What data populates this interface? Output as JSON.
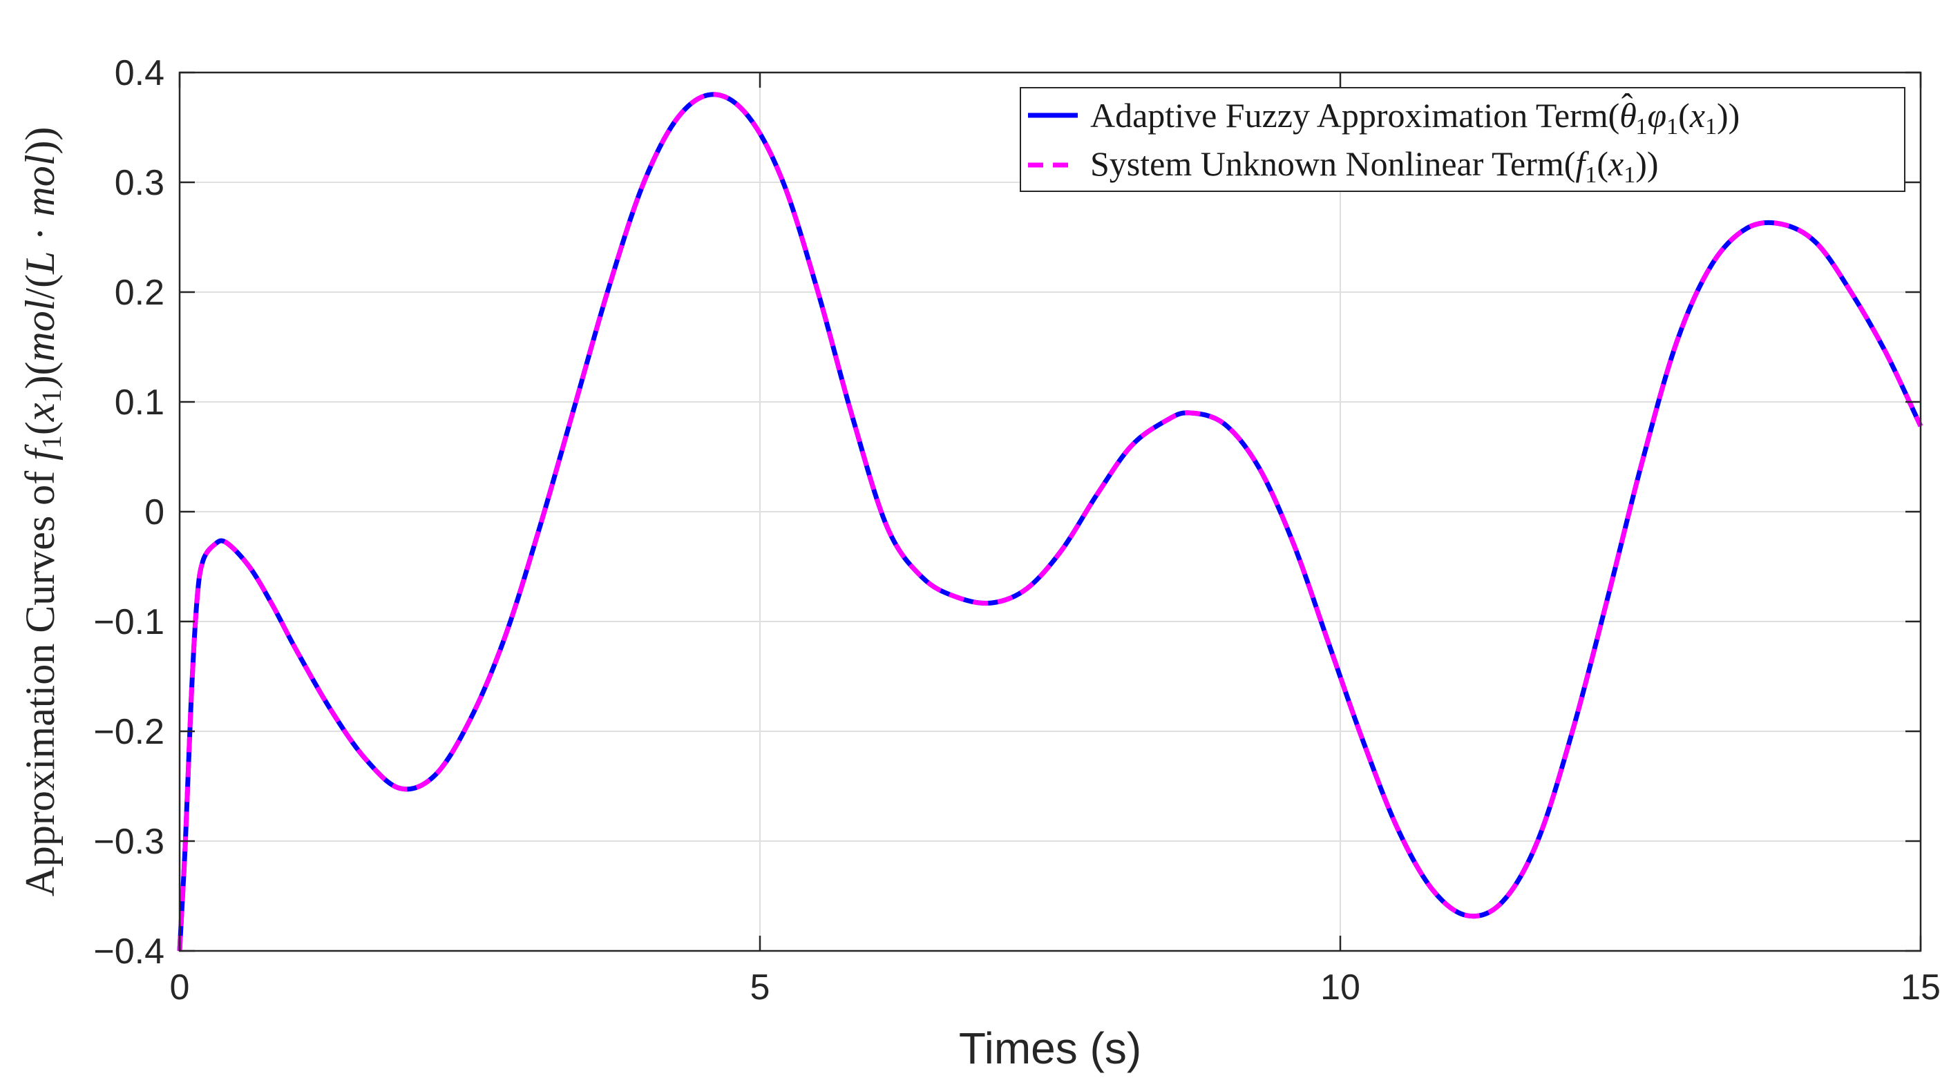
{
  "chart_data": {
    "type": "line",
    "title": "",
    "xlabel": "Times (s)",
    "ylabel": "Approximation Curves of f1(x1)(mol/(L·mol))",
    "xlim": [
      0,
      15
    ],
    "ylim": [
      -0.4,
      0.4
    ],
    "xticks": [
      0,
      5,
      10,
      15
    ],
    "yticks": [
      -0.4,
      -0.3,
      -0.2,
      -0.1,
      0,
      0.1,
      0.2,
      0.3,
      0.4
    ],
    "xtick_labels": [
      "0",
      "5",
      "10",
      "15"
    ],
    "ytick_labels": [
      "−0.4",
      "−0.3",
      "−0.2",
      "−0.1",
      "0",
      "0.1",
      "0.2",
      "0.3",
      "0.4"
    ],
    "grid": true,
    "legend_position": "top-right",
    "series": [
      {
        "name": "Adaptive Fuzzy Approximation Term(θ̂1φ1(x1))",
        "color": "#0000ff",
        "style": "solid",
        "x": [
          0,
          0.05,
          0.1,
          0.15,
          0.2,
          0.3,
          0.4,
          0.6,
          0.8,
          1.0,
          1.3,
          1.6,
          1.9,
          2.2,
          2.5,
          2.8,
          3.1,
          3.4,
          3.7,
          4.0,
          4.3,
          4.6,
          4.9,
          5.2,
          5.5,
          5.8,
          6.1,
          6.4,
          6.7,
          7.0,
          7.3,
          7.6,
          7.9,
          8.2,
          8.5,
          8.7,
          9.0,
          9.3,
          9.6,
          9.9,
          10.2,
          10.5,
          10.8,
          11.1,
          11.4,
          11.7,
          12.0,
          12.3,
          12.6,
          12.9,
          13.2,
          13.5,
          13.8,
          14.1,
          14.4,
          14.7,
          15.0
        ],
        "y": [
          -0.4,
          -0.3,
          -0.17,
          -0.08,
          -0.045,
          -0.03,
          -0.028,
          -0.05,
          -0.085,
          -0.125,
          -0.18,
          -0.225,
          -0.252,
          -0.24,
          -0.19,
          -0.115,
          -0.015,
          0.095,
          0.205,
          0.3,
          0.36,
          0.38,
          0.36,
          0.3,
          0.2,
          0.085,
          -0.015,
          -0.06,
          -0.078,
          -0.083,
          -0.07,
          -0.035,
          0.015,
          0.06,
          0.083,
          0.09,
          0.08,
          0.04,
          -0.03,
          -0.12,
          -0.21,
          -0.29,
          -0.345,
          -0.368,
          -0.355,
          -0.3,
          -0.2,
          -0.08,
          0.045,
          0.155,
          0.225,
          0.258,
          0.262,
          0.245,
          0.2,
          0.145,
          0.078
        ]
      },
      {
        "name": "System Unknown Nonlinear Term(f1(x1))",
        "color": "#ff00ff",
        "style": "dashed",
        "x": [
          0,
          0.05,
          0.1,
          0.15,
          0.2,
          0.3,
          0.4,
          0.6,
          0.8,
          1.0,
          1.3,
          1.6,
          1.9,
          2.2,
          2.5,
          2.8,
          3.1,
          3.4,
          3.7,
          4.0,
          4.3,
          4.6,
          4.9,
          5.2,
          5.5,
          5.8,
          6.1,
          6.4,
          6.7,
          7.0,
          7.3,
          7.6,
          7.9,
          8.2,
          8.5,
          8.7,
          9.0,
          9.3,
          9.6,
          9.9,
          10.2,
          10.5,
          10.8,
          11.1,
          11.4,
          11.7,
          12.0,
          12.3,
          12.6,
          12.9,
          13.2,
          13.5,
          13.8,
          14.1,
          14.4,
          14.7,
          15.0
        ],
        "y": [
          -0.4,
          -0.3,
          -0.17,
          -0.08,
          -0.045,
          -0.03,
          -0.028,
          -0.05,
          -0.085,
          -0.125,
          -0.18,
          -0.225,
          -0.252,
          -0.24,
          -0.19,
          -0.115,
          -0.015,
          0.095,
          0.205,
          0.3,
          0.36,
          0.38,
          0.36,
          0.3,
          0.2,
          0.085,
          -0.015,
          -0.06,
          -0.078,
          -0.083,
          -0.07,
          -0.035,
          0.015,
          0.06,
          0.083,
          0.09,
          0.08,
          0.04,
          -0.03,
          -0.12,
          -0.21,
          -0.29,
          -0.345,
          -0.368,
          -0.355,
          -0.3,
          -0.2,
          -0.08,
          0.045,
          0.155,
          0.225,
          0.258,
          0.262,
          0.245,
          0.2,
          0.145,
          0.078
        ]
      }
    ]
  },
  "legend": {
    "series1": {
      "prefix": "Adaptive Fuzzy Approximation Term(",
      "theta": "θ",
      "hat": "ˆ",
      "sub1": "1",
      "phi": "φ",
      "sub2": "1",
      "open": "(",
      "x": "x",
      "sub3": "1",
      "close": "))"
    },
    "series2": {
      "prefix": "System Unknown Nonlinear Term(",
      "f": "f",
      "sub1": "1",
      "open": "(",
      "x": "x",
      "sub2": "1",
      "close": "))"
    }
  },
  "ylabel_parts": {
    "prefix": "Approximation Curves of ",
    "f": "f",
    "sub1": "1",
    "open": "(",
    "x": "x",
    "sub2": "1",
    "mid": ")(",
    "mol1": "mol",
    "slash": "/(",
    "L": "L",
    "dot": " · ",
    "mol2": "mol",
    "close": "))"
  }
}
